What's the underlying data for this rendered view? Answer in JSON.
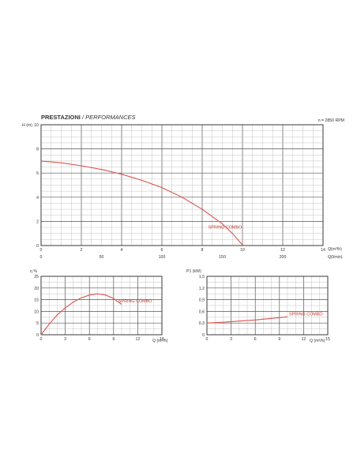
{
  "chart_data": [
    {
      "type": "line",
      "title": "PRESTAZIONI",
      "subtitle": "PERFORMANCES",
      "annotation": "n = 2850 RPM",
      "ylabel": "H (m)",
      "xlabel": "Q(m³/h)",
      "xlabel2": "Q(l/min)",
      "xlim": [
        0,
        14
      ],
      "ylim": [
        0,
        10
      ],
      "x_ticks": [
        "0",
        "2",
        "4",
        "6",
        "8",
        "10",
        "12",
        "14"
      ],
      "x2_ticks": [
        "0",
        "50",
        "100",
        "150",
        "200"
      ],
      "y_ticks": [
        "0",
        "2",
        "4",
        "6",
        "8",
        "10"
      ],
      "grid": true,
      "color": "#d9534f",
      "series": [
        {
          "name": "SPRING COMBO",
          "x": [
            0,
            1,
            2,
            3,
            4,
            5,
            6,
            7,
            8,
            9,
            9.5,
            10
          ],
          "y": [
            7.0,
            6.85,
            6.6,
            6.3,
            5.9,
            5.4,
            4.8,
            4.0,
            3.0,
            1.8,
            1.0,
            0.05
          ]
        }
      ]
    },
    {
      "type": "line",
      "ylabel": "η %",
      "xlabel": "Q (m³/h)",
      "xlim": [
        0,
        15
      ],
      "ylim": [
        0,
        25
      ],
      "x_ticks": [
        "0",
        "3",
        "6",
        "9",
        "12",
        "15"
      ],
      "y_ticks": [
        "0",
        "5",
        "10",
        "15",
        "20",
        "25"
      ],
      "grid": true,
      "color": "#d9534f",
      "series": [
        {
          "name": "SPRING COMBO",
          "x": [
            0,
            1,
            2,
            3,
            4,
            5,
            6,
            7,
            8,
            9,
            10
          ],
          "y": [
            0,
            4.5,
            8.5,
            11.5,
            14,
            15.8,
            17,
            17.5,
            17,
            15.5,
            13
          ]
        }
      ]
    },
    {
      "type": "line",
      "ylabel": "P1 (kW)",
      "xlabel": "Q (m³/h)",
      "xlim": [
        0,
        15
      ],
      "ylim": [
        0,
        1.5
      ],
      "x_ticks": [
        "0",
        "3",
        "6",
        "9",
        "12",
        "15"
      ],
      "y_ticks": [
        "0",
        "0,3",
        "0,6",
        "0,9",
        "1,2",
        "1,5"
      ],
      "grid": true,
      "color": "#d9534f",
      "series": [
        {
          "name": "SPRING COMBO",
          "x": [
            0,
            2,
            4,
            6,
            8,
            10
          ],
          "y": [
            0.3,
            0.32,
            0.35,
            0.38,
            0.42,
            0.46
          ]
        }
      ]
    }
  ]
}
